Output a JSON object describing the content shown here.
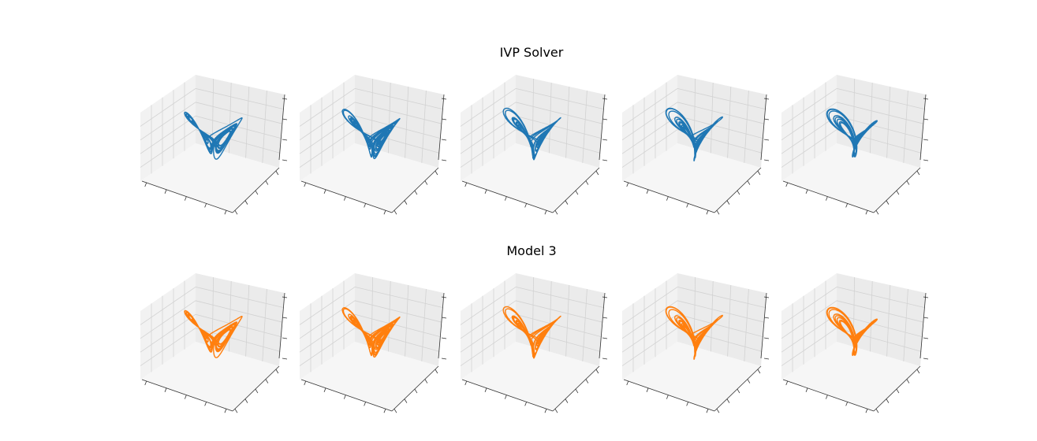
{
  "figure": {
    "rows": [
      {
        "title": "IVP Solver",
        "color": "#1f77b4"
      },
      {
        "title": "Model 3",
        "color": "#ff7f0e"
      }
    ],
    "columns": 5
  },
  "chart_data": {
    "type": "line",
    "plot": "3d-line",
    "grid": true,
    "tick_labels": "none",
    "axes": [
      "x",
      "y",
      "z"
    ],
    "panels": [
      {
        "row": "IVP Solver",
        "col": 1,
        "color": "#1f77b4",
        "variant": 0
      },
      {
        "row": "IVP Solver",
        "col": 2,
        "color": "#1f77b4",
        "variant": 1
      },
      {
        "row": "IVP Solver",
        "col": 3,
        "color": "#1f77b4",
        "variant": 2
      },
      {
        "row": "IVP Solver",
        "col": 4,
        "color": "#1f77b4",
        "variant": 3
      },
      {
        "row": "IVP Solver",
        "col": 5,
        "color": "#1f77b4",
        "variant": 4
      },
      {
        "row": "Model 3",
        "col": 1,
        "color": "#ff7f0e",
        "variant": 0
      },
      {
        "row": "Model 3",
        "col": 2,
        "color": "#ff7f0e",
        "variant": 1
      },
      {
        "row": "Model 3",
        "col": 3,
        "color": "#ff7f0e",
        "variant": 2
      },
      {
        "row": "Model 3",
        "col": 4,
        "color": "#ff7f0e",
        "variant": 3
      },
      {
        "row": "Model 3",
        "col": 5,
        "color": "#ff7f0e",
        "variant": 4
      }
    ]
  }
}
